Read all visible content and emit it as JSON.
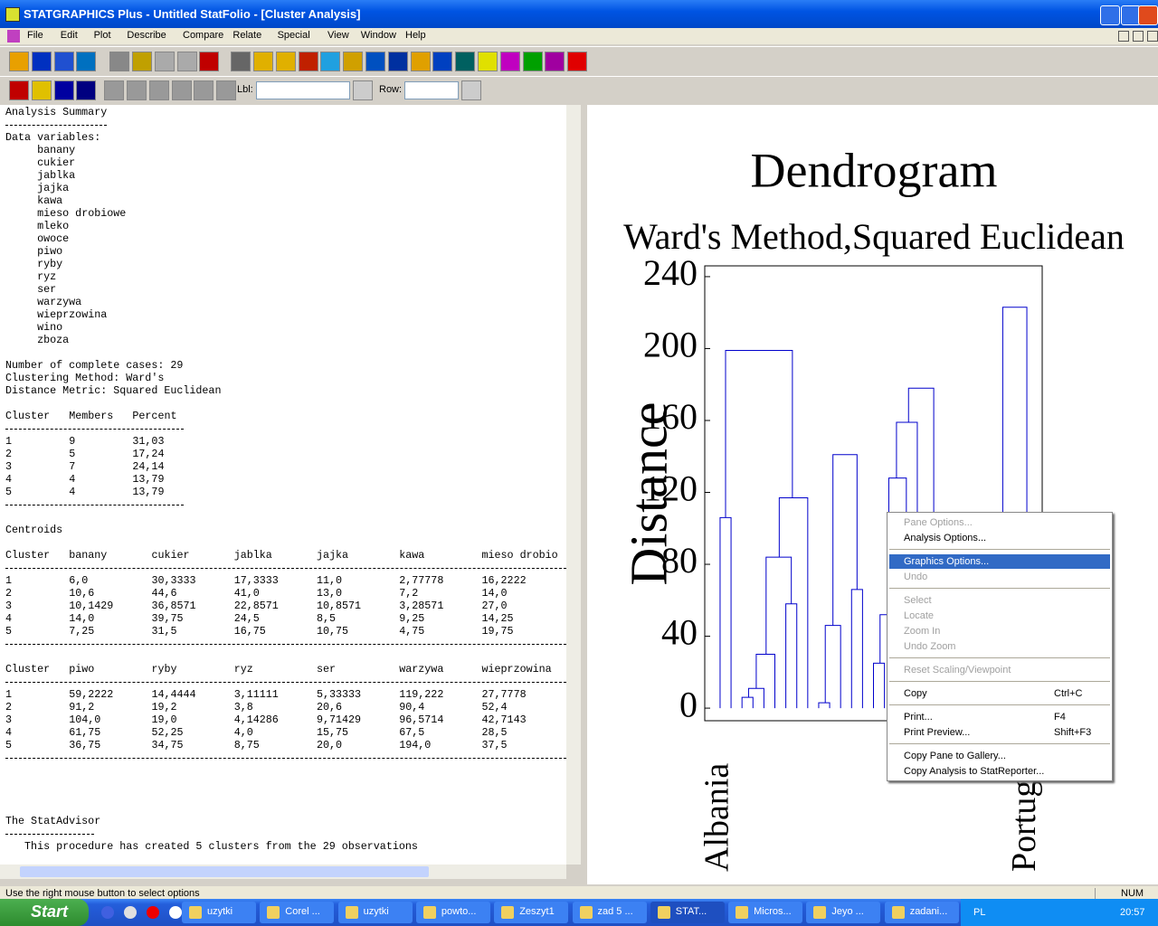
{
  "window": {
    "title": "STATGRAPHICS Plus - Untitled StatFolio - [Cluster Analysis]"
  },
  "menu": [
    "File",
    "Edit",
    "Plot",
    "Describe",
    "Compare",
    "Relate",
    "Special",
    "View",
    "Window",
    "Help"
  ],
  "toolbar": {
    "lbl_label": "Lbl:",
    "row_label": "Row:"
  },
  "summary": {
    "title": "Analysis Summary",
    "variables_label": "Data variables:",
    "variables": [
      "banany",
      "cukier",
      "jablka",
      "jajka",
      "kawa",
      "mieso drobiowe",
      "mleko",
      "owoce",
      "piwo",
      "ryby",
      "ryz",
      "ser",
      "warzywa",
      "wieprzowina",
      "wino",
      "zboza"
    ],
    "info": [
      "Number of complete cases: 29",
      "Clustering Method: Ward's",
      "Distance Metric: Squared Euclidean"
    ],
    "clusters": {
      "header": [
        "Cluster",
        "Members",
        "Percent"
      ],
      "rows": [
        [
          "1",
          "9",
          "31,03"
        ],
        [
          "2",
          "5",
          "17,24"
        ],
        [
          "3",
          "7",
          "24,14"
        ],
        [
          "4",
          "4",
          "13,79"
        ],
        [
          "5",
          "4",
          "13,79"
        ]
      ]
    },
    "centroids_title": "Centroids",
    "centroids": [
      {
        "header": [
          "Cluster",
          "banany",
          "cukier",
          "jablka",
          "jajka",
          "kawa",
          "mieso drobio"
        ],
        "rows": [
          [
            "1",
            "6,0",
            "30,3333",
            "17,3333",
            "11,0",
            "2,77778",
            "16,2222"
          ],
          [
            "2",
            "10,6",
            "44,6",
            "41,0",
            "13,0",
            "7,2",
            "14,0"
          ],
          [
            "3",
            "10,1429",
            "36,8571",
            "22,8571",
            "10,8571",
            "3,28571",
            "27,0"
          ],
          [
            "4",
            "14,0",
            "39,75",
            "24,5",
            "8,5",
            "9,25",
            "14,25"
          ],
          [
            "5",
            "7,25",
            "31,5",
            "16,75",
            "10,75",
            "4,75",
            "19,75"
          ]
        ]
      },
      {
        "header": [
          "Cluster",
          "piwo",
          "ryby",
          "ryz",
          "ser",
          "warzywa",
          "wieprzowina"
        ],
        "rows": [
          [
            "1",
            "59,2222",
            "14,4444",
            "3,11111",
            "5,33333",
            "119,222",
            "27,7778"
          ],
          [
            "2",
            "91,2",
            "19,2",
            "3,8",
            "20,6",
            "90,4",
            "52,4"
          ],
          [
            "3",
            "104,0",
            "19,0",
            "4,14286",
            "9,71429",
            "96,5714",
            "42,7143"
          ],
          [
            "4",
            "61,75",
            "52,25",
            "4,0",
            "15,75",
            "67,5",
            "28,5"
          ],
          [
            "5",
            "36,75",
            "34,75",
            "8,75",
            "20,0",
            "194,0",
            "37,5"
          ]
        ]
      }
    ],
    "advisor_title": "The StatAdvisor",
    "advisor_text": "This procedure has created 5 clusters from the 29 observations"
  },
  "chart_data": {
    "type": "dendrogram",
    "title": "Dendrogram",
    "subtitle": "Ward's Method,Squared Euclidean",
    "y_label": "Distance",
    "ylim": [
      -7,
      246
    ],
    "yticks": [
      0,
      40,
      80,
      120,
      160,
      200,
      240
    ],
    "xlim": [
      -1.4,
      29.4
    ],
    "color": "#0000cc",
    "leaf_labels": [
      "Albania",
      null,
      null,
      null,
      null,
      null,
      null,
      null,
      null,
      null,
      null,
      null,
      null,
      null,
      null,
      null,
      null,
      null,
      null,
      null,
      null,
      null,
      null,
      null,
      null,
      null,
      null,
      null,
      "Portugalia"
    ],
    "links": [
      {
        "x": [
          0,
          1
        ],
        "h": 106,
        "legs": [
          0,
          0
        ]
      },
      {
        "x": [
          0.5,
          6.6
        ],
        "h": 199,
        "legs": [
          106,
          117
        ]
      },
      {
        "x": [
          5.4,
          8
        ],
        "h": 117,
        "legs": [
          84,
          0
        ]
      },
      {
        "x": [
          4.2,
          6.5
        ],
        "h": 84,
        "legs": [
          30,
          58
        ]
      },
      {
        "x": [
          6,
          7
        ],
        "h": 58,
        "legs": [
          0,
          0
        ]
      },
      {
        "x": [
          3.3,
          5
        ],
        "h": 30,
        "legs": [
          11,
          0
        ]
      },
      {
        "x": [
          2.6,
          4
        ],
        "h": 11,
        "legs": [
          6,
          0
        ]
      },
      {
        "x": [
          2,
          3
        ],
        "h": 6,
        "legs": [
          0,
          0
        ]
      },
      {
        "x": [
          10.3,
          12.5
        ],
        "h": 141,
        "legs": [
          46,
          66
        ]
      },
      {
        "x": [
          9.6,
          11
        ],
        "h": 46,
        "legs": [
          3,
          0
        ]
      },
      {
        "x": [
          9,
          10
        ],
        "h": 3,
        "legs": [
          0,
          0
        ]
      },
      {
        "x": [
          12,
          13
        ],
        "h": 66,
        "legs": [
          0,
          0
        ]
      },
      {
        "x": [
          17.2,
          19.5
        ],
        "h": 178,
        "legs": [
          159,
          0
        ]
      },
      {
        "x": [
          16.1,
          18
        ],
        "h": 159,
        "legs": [
          128,
          0
        ]
      },
      {
        "x": [
          15.4,
          17
        ],
        "h": 128,
        "legs": [
          52,
          0
        ]
      },
      {
        "x": [
          14.6,
          16.2
        ],
        "h": 52,
        "legs": [
          25,
          0
        ]
      },
      {
        "x": [
          14,
          15
        ],
        "h": 25,
        "legs": [
          0,
          0
        ]
      },
      {
        "x": [
          25.8,
          28
        ],
        "h": 223,
        "legs": [
          0,
          0
        ]
      }
    ]
  },
  "context_menu": {
    "groups": [
      [
        {
          "label": "Pane Options...",
          "enabled": false
        },
        {
          "label": "Analysis Options...",
          "enabled": true
        }
      ],
      [
        {
          "label": "Graphics Options...",
          "enabled": true,
          "highlighted": true
        },
        {
          "label": "Undo",
          "enabled": false
        }
      ],
      [
        {
          "label": "Select",
          "enabled": false
        },
        {
          "label": "Locate",
          "enabled": false
        },
        {
          "label": "Zoom In",
          "enabled": false
        },
        {
          "label": "Undo Zoom",
          "enabled": false
        }
      ],
      [
        {
          "label": "Reset Scaling/Viewpoint",
          "enabled": false
        }
      ],
      [
        {
          "label": "Copy",
          "shortcut": "Ctrl+C",
          "enabled": true
        }
      ],
      [
        {
          "label": "Print...",
          "shortcut": "F4",
          "enabled": true
        },
        {
          "label": "Print Preview...",
          "shortcut": "Shift+F3",
          "enabled": true
        }
      ],
      [
        {
          "label": "Copy Pane to Gallery...",
          "enabled": true
        },
        {
          "label": "Copy Analysis to StatReporter...",
          "enabled": true
        }
      ]
    ]
  },
  "status_bar": {
    "text": "Use the right mouse button to select options",
    "indicator": "NUM"
  },
  "taskbar": {
    "start": "Start",
    "buttons": [
      "uzytki",
      "Corel ...",
      "uzytki",
      "powto...",
      "Zeszyt1",
      "zad 5 ...",
      "STAT...",
      "Micros...",
      "Jeyo ...",
      "zadani..."
    ],
    "active": 6,
    "language": "PL",
    "clock": "20:57"
  }
}
